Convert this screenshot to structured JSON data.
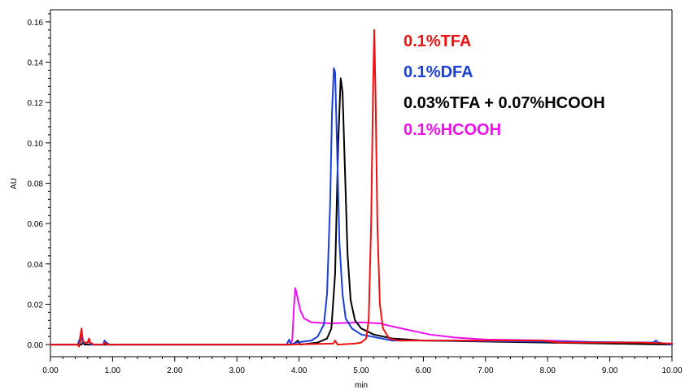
{
  "chart_data": {
    "type": "line",
    "title": "",
    "xlabel": "min",
    "ylabel": "AU",
    "xlim": [
      0,
      10
    ],
    "ylim": [
      -0.006,
      0.166
    ],
    "x_ticks": [
      "0.00",
      "1.00",
      "2.00",
      "3.00",
      "4.00",
      "5.00",
      "6.00",
      "7.00",
      "8.00",
      "9.00",
      "10.00"
    ],
    "y_ticks": [
      "0.00",
      "0.02",
      "0.04",
      "0.06",
      "0.08",
      "0.10",
      "0.12",
      "0.14",
      "0.16"
    ],
    "x_tick_values": [
      0,
      1,
      2,
      3,
      4,
      5,
      6,
      7,
      8,
      9,
      10
    ],
    "y_tick_values": [
      0,
      0.02,
      0.04,
      0.06,
      0.08,
      0.1,
      0.12,
      0.14,
      0.16
    ],
    "grid": false,
    "legend_position": "top-right",
    "series": [
      {
        "name": "0.1%TFA",
        "color": "#ee1111",
        "points": [
          [
            0,
            0
          ],
          [
            0.44,
            0
          ],
          [
            0.46,
            -0.001
          ],
          [
            0.48,
            0.004
          ],
          [
            0.5,
            0.008
          ],
          [
            0.52,
            0.002
          ],
          [
            0.55,
            0.001
          ],
          [
            0.6,
            0.001
          ],
          [
            0.62,
            0.003
          ],
          [
            0.64,
            0.001
          ],
          [
            0.7,
            0
          ],
          [
            0.85,
            0
          ],
          [
            0.88,
            0.001
          ],
          [
            0.9,
            0
          ],
          [
            3.8,
            0
          ],
          [
            4.55,
            0.0005
          ],
          [
            4.58,
            0.002
          ],
          [
            4.62,
            0
          ],
          [
            4.9,
            0.0005
          ],
          [
            5.0,
            0.001
          ],
          [
            5.08,
            0.003
          ],
          [
            5.12,
            0.012
          ],
          [
            5.16,
            0.06
          ],
          [
            5.19,
            0.125
          ],
          [
            5.21,
            0.156
          ],
          [
            5.23,
            0.125
          ],
          [
            5.26,
            0.06
          ],
          [
            5.3,
            0.02
          ],
          [
            5.35,
            0.008
          ],
          [
            5.45,
            0.003
          ],
          [
            5.6,
            0.002
          ],
          [
            7.9,
            0.002
          ],
          [
            8.2,
            0.001
          ],
          [
            9.5,
            0.001
          ],
          [
            10,
            0.0005
          ]
        ]
      },
      {
        "name": "0.1%DFA",
        "color": "#1a3fd6",
        "points": [
          [
            0,
            0
          ],
          [
            0.44,
            0
          ],
          [
            0.46,
            0.002
          ],
          [
            0.48,
            0.001
          ],
          [
            0.5,
            0.006
          ],
          [
            0.52,
            0.001
          ],
          [
            0.6,
            0.001
          ],
          [
            0.62,
            0.002
          ],
          [
            0.65,
            0
          ],
          [
            0.85,
            0
          ],
          [
            0.87,
            0.002
          ],
          [
            0.9,
            0.001
          ],
          [
            0.95,
            0
          ],
          [
            3.8,
            0
          ],
          [
            3.84,
            0.0025
          ],
          [
            3.87,
            0
          ],
          [
            3.95,
            0.001
          ],
          [
            4.2,
            0.002
          ],
          [
            4.3,
            0.004
          ],
          [
            4.4,
            0.01
          ],
          [
            4.45,
            0.025
          ],
          [
            4.5,
            0.07
          ],
          [
            4.53,
            0.115
          ],
          [
            4.56,
            0.137
          ],
          [
            4.58,
            0.135
          ],
          [
            4.61,
            0.1
          ],
          [
            4.65,
            0.05
          ],
          [
            4.7,
            0.025
          ],
          [
            4.75,
            0.013
          ],
          [
            4.85,
            0.008
          ],
          [
            5.0,
            0.005
          ],
          [
            5.5,
            0.002
          ],
          [
            6.0,
            0.002
          ],
          [
            9.7,
            0.001
          ],
          [
            9.74,
            0.002
          ],
          [
            9.78,
            0.001
          ],
          [
            10,
            0
          ]
        ]
      },
      {
        "name": "0.03%TFA + 0.07%HCOOH",
        "color": "#000000",
        "points": [
          [
            0,
            0
          ],
          [
            0.5,
            0
          ],
          [
            0.52,
            0.001
          ],
          [
            0.55,
            0
          ],
          [
            3.9,
            0
          ],
          [
            3.98,
            0.002
          ],
          [
            4.02,
            0
          ],
          [
            4.3,
            0.001
          ],
          [
            4.45,
            0.003
          ],
          [
            4.52,
            0.008
          ],
          [
            4.58,
            0.035
          ],
          [
            4.63,
            0.1
          ],
          [
            4.67,
            0.132
          ],
          [
            4.7,
            0.125
          ],
          [
            4.74,
            0.085
          ],
          [
            4.78,
            0.045
          ],
          [
            4.83,
            0.022
          ],
          [
            4.9,
            0.012
          ],
          [
            5.0,
            0.008
          ],
          [
            5.2,
            0.005
          ],
          [
            5.5,
            0.003
          ],
          [
            6.0,
            0.002
          ],
          [
            10,
            0
          ]
        ]
      },
      {
        "name": "0.1%HCOOH",
        "color": "#ee11ee",
        "points": [
          [
            0,
            0
          ],
          [
            0.44,
            0
          ],
          [
            0.46,
            0.001
          ],
          [
            0.48,
            0.004
          ],
          [
            0.5,
            0.006
          ],
          [
            0.53,
            0.001
          ],
          [
            0.6,
            0.001
          ],
          [
            0.62,
            0.003
          ],
          [
            0.65,
            0
          ],
          [
            3.85,
            0
          ],
          [
            3.89,
            0.002
          ],
          [
            3.92,
            0.02
          ],
          [
            3.94,
            0.028
          ],
          [
            3.97,
            0.024
          ],
          [
            4.02,
            0.017
          ],
          [
            4.08,
            0.013
          ],
          [
            4.2,
            0.011
          ],
          [
            4.5,
            0.0105
          ],
          [
            5.0,
            0.011
          ],
          [
            5.3,
            0.0105
          ],
          [
            5.5,
            0.009
          ],
          [
            5.8,
            0.007
          ],
          [
            6.1,
            0.005
          ],
          [
            6.5,
            0.0035
          ],
          [
            7.0,
            0.0025
          ],
          [
            8.0,
            0.002
          ],
          [
            9.0,
            0.001
          ],
          [
            10,
            0.0005
          ]
        ]
      }
    ]
  }
}
